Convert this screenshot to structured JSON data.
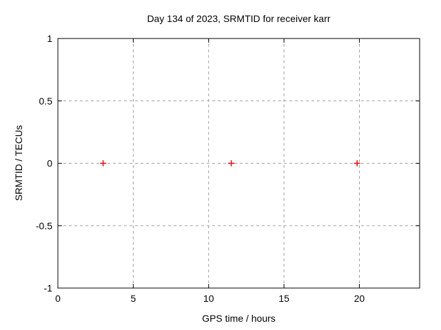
{
  "chart_data": {
    "type": "scatter",
    "title": "Day 134 of 2023, SRMTID for receiver karr",
    "xlabel": "GPS time / hours",
    "ylabel": "SRMTID / TECUs",
    "xlim": [
      0,
      24
    ],
    "ylim": [
      -1,
      1
    ],
    "xticks": [
      0,
      5,
      10,
      15,
      20
    ],
    "xtick_labels": [
      "0",
      "5",
      "10",
      "15",
      "20"
    ],
    "yticks": [
      -1,
      -0.5,
      0,
      0.5,
      1
    ],
    "ytick_labels": [
      "-1",
      "-0.5",
      "0",
      "0.5",
      "1"
    ],
    "grid": true,
    "legend_position": "none",
    "background_color": "#ffffff",
    "grid_color": "#9e9e9e",
    "axis_color": "#000000",
    "series": [
      {
        "marker": "plus",
        "color": "#ff0000",
        "points": [
          {
            "x": 3.0,
            "y": 0.0
          },
          {
            "x": 11.5,
            "y": 0.0
          },
          {
            "x": 19.85,
            "y": 0.0
          }
        ]
      }
    ]
  }
}
